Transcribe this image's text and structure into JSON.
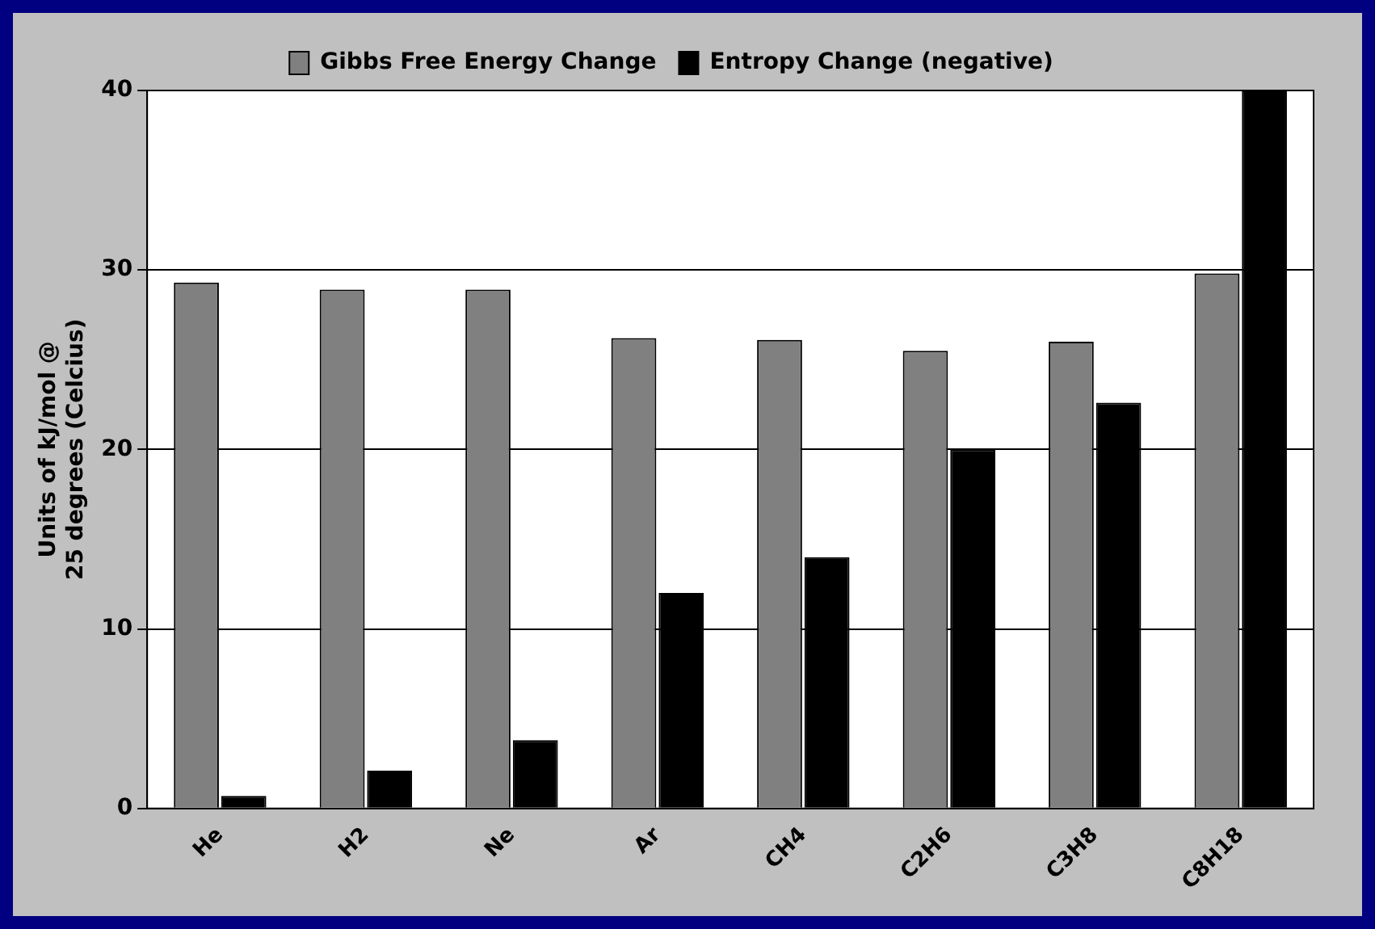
{
  "chart_data": {
    "type": "bar",
    "ylabel": "Units of kJ/mol @\n25 degrees (Celcius)",
    "categories": [
      "He",
      "H2",
      "Ne",
      "Ar",
      "CH4",
      "C2H6",
      "C3H8",
      "C8H18"
    ],
    "series": [
      {
        "name": "Gibbs Free Energy Change",
        "color": "#808080",
        "values": [
          29.3,
          28.9,
          28.9,
          26.2,
          26.1,
          25.5,
          26.0,
          29.8
        ]
      },
      {
        "name": "Entropy Change (negative)",
        "color": "#000000",
        "values": [
          0.7,
          2.1,
          3.8,
          12.0,
          14.0,
          20.0,
          22.6,
          40
        ]
      }
    ],
    "ylim": [
      0,
      40
    ],
    "yticks": [
      0,
      10,
      20,
      30,
      40
    ],
    "grid": "y",
    "legend": "top"
  }
}
